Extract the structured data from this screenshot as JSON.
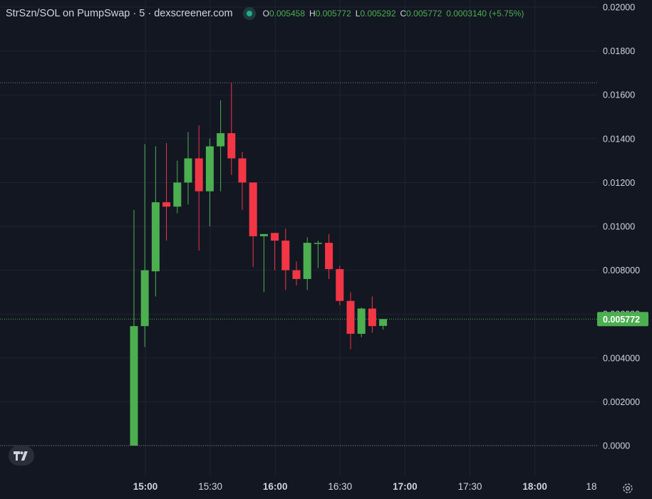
{
  "header": {
    "title": "StrSzn/SOL on PumpSwap · 5 · dexscreener.com",
    "ohlc": [
      {
        "key": "O",
        "value": "0.005458"
      },
      {
        "key": "H",
        "value": "0.005772"
      },
      {
        "key": "L",
        "value": "0.005292"
      },
      {
        "key": "C",
        "value": "0.005772"
      }
    ],
    "change": "0.0003140 (+5.75%)"
  },
  "price_axis": {
    "ticks": [
      "0.02000",
      "0.01800",
      "0.01600",
      "0.01400",
      "0.01200",
      "0.01000",
      "0.008000",
      "0.006000",
      "0.004000",
      "0.002000",
      "0.0000"
    ],
    "current_price_label": "0.005772",
    "high_line_value": 0.01655
  },
  "time_axis": {
    "ticks": [
      {
        "label": "15:00",
        "bold": true
      },
      {
        "label": "15:30",
        "bold": false
      },
      {
        "label": "16:00",
        "bold": true
      },
      {
        "label": "16:30",
        "bold": false
      },
      {
        "label": "17:00",
        "bold": true
      },
      {
        "label": "17:30",
        "bold": false
      },
      {
        "label": "18:00",
        "bold": true
      },
      {
        "label": "18",
        "bold": false
      }
    ]
  },
  "colors": {
    "background": "#131722",
    "grid": "#1f2431",
    "up": "#4caf50",
    "down": "#f23645",
    "text": "#d1d4dc"
  },
  "icons": {
    "logo": "tradingview-logo-icon",
    "settings": "gear-icon"
  },
  "chart_data": {
    "type": "candlestick",
    "interval": "5",
    "ylim": [
      0,
      0.02
    ],
    "xlabel": "",
    "ylabel": "",
    "candles": [
      {
        "t": "14:55",
        "o": 0.0,
        "h": 0.01075,
        "l": 0.0,
        "c": 0.00545
      },
      {
        "t": "15:00",
        "o": 0.00545,
        "h": 0.01375,
        "l": 0.0045,
        "c": 0.008
      },
      {
        "t": "15:05",
        "o": 0.00795,
        "h": 0.01365,
        "l": 0.0068,
        "c": 0.0111
      },
      {
        "t": "15:10",
        "o": 0.0111,
        "h": 0.0138,
        "l": 0.00935,
        "c": 0.0109
      },
      {
        "t": "15:15",
        "o": 0.0109,
        "h": 0.013,
        "l": 0.0106,
        "c": 0.012
      },
      {
        "t": "15:20",
        "o": 0.012,
        "h": 0.0143,
        "l": 0.011,
        "c": 0.0131
      },
      {
        "t": "15:25",
        "o": 0.0131,
        "h": 0.0146,
        "l": 0.0089,
        "c": 0.0116
      },
      {
        "t": "15:30",
        "o": 0.0116,
        "h": 0.014,
        "l": 0.01,
        "c": 0.01365
      },
      {
        "t": "15:35",
        "o": 0.01365,
        "h": 0.01575,
        "l": 0.0116,
        "c": 0.01425
      },
      {
        "t": "15:40",
        "o": 0.01425,
        "h": 0.01655,
        "l": 0.01235,
        "c": 0.0131
      },
      {
        "t": "15:45",
        "o": 0.0131,
        "h": 0.0134,
        "l": 0.01075,
        "c": 0.012
      },
      {
        "t": "15:50",
        "o": 0.012,
        "h": 0.012,
        "l": 0.00815,
        "c": 0.00955
      },
      {
        "t": "15:55",
        "o": 0.00955,
        "h": 0.00965,
        "l": 0.007,
        "c": 0.00965
      },
      {
        "t": "16:00",
        "o": 0.0097,
        "h": 0.0097,
        "l": 0.008,
        "c": 0.00935
      },
      {
        "t": "16:05",
        "o": 0.00935,
        "h": 0.0099,
        "l": 0.0071,
        "c": 0.008
      },
      {
        "t": "16:10",
        "o": 0.008,
        "h": 0.0084,
        "l": 0.0073,
        "c": 0.0076
      },
      {
        "t": "16:15",
        "o": 0.0076,
        "h": 0.0095,
        "l": 0.0071,
        "c": 0.00925
      },
      {
        "t": "16:20",
        "o": 0.00925,
        "h": 0.00935,
        "l": 0.0081,
        "c": 0.00925
      },
      {
        "t": "16:25",
        "o": 0.00925,
        "h": 0.00965,
        "l": 0.0076,
        "c": 0.00805
      },
      {
        "t": "16:30",
        "o": 0.00805,
        "h": 0.0082,
        "l": 0.0064,
        "c": 0.0066
      },
      {
        "t": "16:35",
        "o": 0.0066,
        "h": 0.007,
        "l": 0.0044,
        "c": 0.0051
      },
      {
        "t": "16:40",
        "o": 0.0051,
        "h": 0.0063,
        "l": 0.00495,
        "c": 0.00625
      },
      {
        "t": "16:45",
        "o": 0.00625,
        "h": 0.0068,
        "l": 0.00515,
        "c": 0.00545
      },
      {
        "t": "16:50",
        "o": 0.00546,
        "h": 0.00577,
        "l": 0.00529,
        "c": 0.00577
      }
    ]
  }
}
